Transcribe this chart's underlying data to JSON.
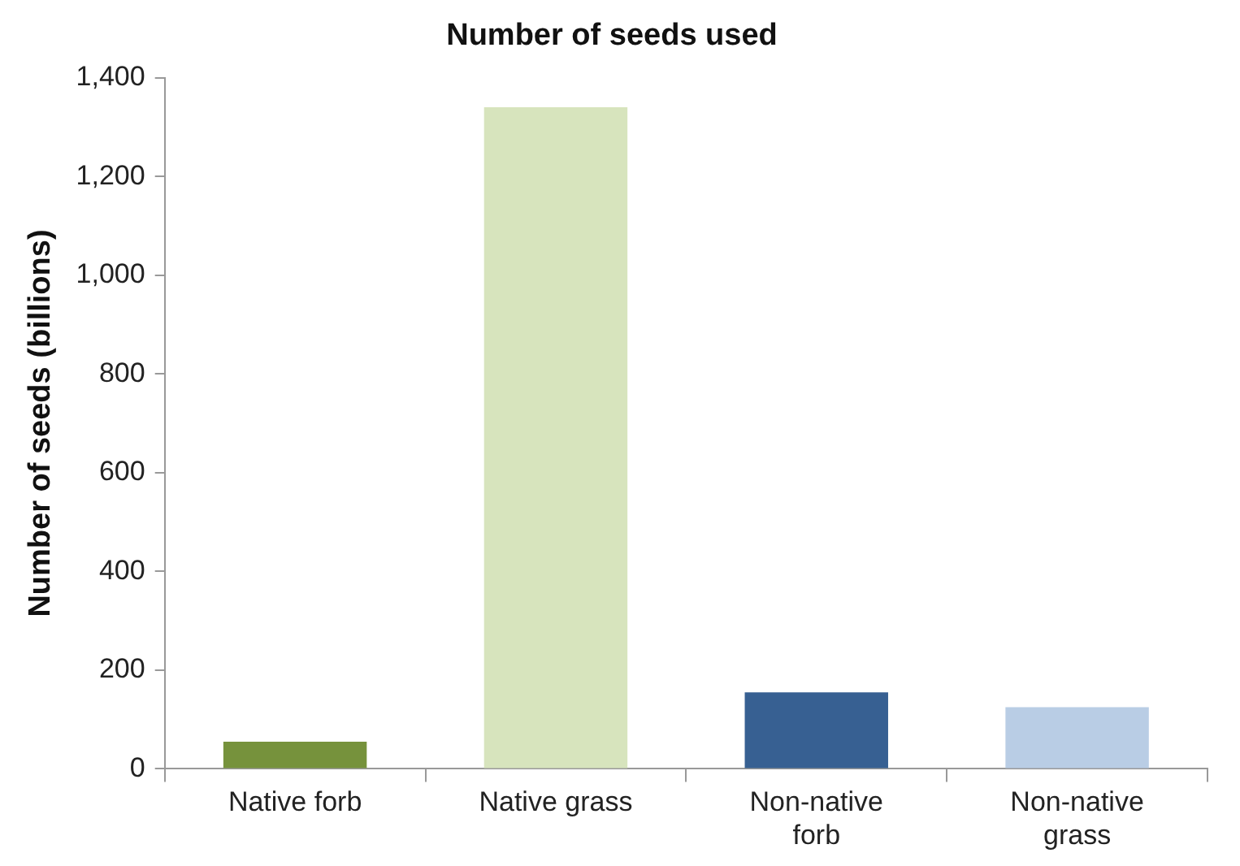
{
  "chart_data": {
    "type": "bar",
    "title": "Number of seeds used",
    "ylabel": "Number of seeds (billions)",
    "categories": [
      "Native forb",
      "Native grass",
      "Non-native forb",
      "Non-native grass"
    ],
    "values": [
      55,
      1340,
      155,
      125
    ],
    "colors": [
      "#76923c",
      "#d7e4bd",
      "#376092",
      "#b9cde5"
    ],
    "ylim": [
      0,
      1400
    ],
    "yticks": [
      0,
      200,
      400,
      600,
      800,
      {
        "value": 1000,
        "label": "1,000"
      },
      {
        "value": 1200,
        "label": "1,200"
      },
      {
        "value": 1400,
        "label": "1,400"
      }
    ],
    "grid": false,
    "legend": false
  }
}
